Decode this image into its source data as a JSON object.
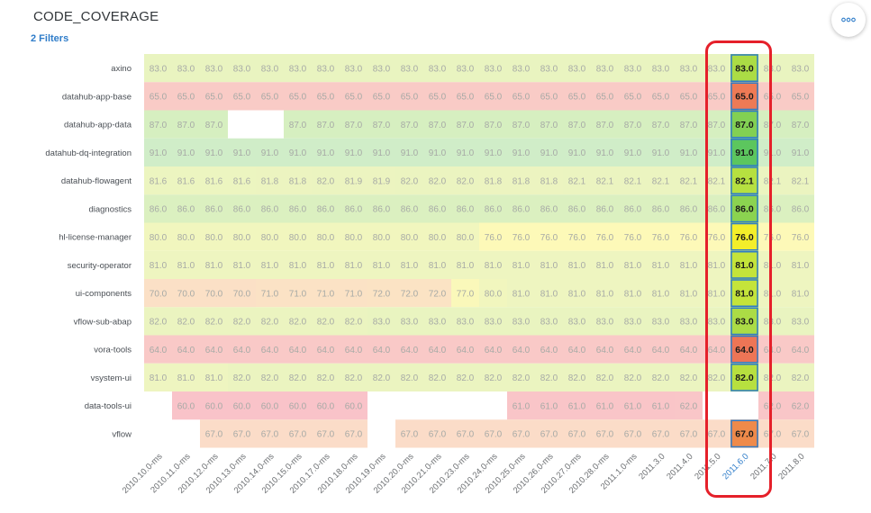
{
  "header": {
    "title": "CODE_COVERAGE",
    "filters_label": "2 Filters",
    "more_icon": "more-horizontal-icon"
  },
  "colors": {
    "accent": "#2e7cc9",
    "highlight_box": "#e5202a",
    "selected_border": "#2e7cc9"
  },
  "chart_data": {
    "type": "heatmap",
    "title": "",
    "xlabel": "",
    "ylabel": "",
    "selected_column": "2011.6.0",
    "x": [
      "2010.10.0-ms",
      "2010.11.0-ms",
      "2010.12.0-ms",
      "2010.13.0-ms",
      "2010.14.0-ms",
      "2010.15.0-ms",
      "2010.17.0-ms",
      "2010.18.0-ms",
      "2010.19.0-ms",
      "2010.20.0-ms",
      "2010.21.0-ms",
      "2010.23.0-ms",
      "2010.24.0-ms",
      "2010.25.0-ms",
      "2010.26.0-ms",
      "2010.27.0-ms",
      "2010.28.0-ms",
      "2011.1.0-ms",
      "2011.3.0",
      "2011.4.0",
      "2011.5.0",
      "2011.6.0",
      "2011.7.0",
      "2011.8.0"
    ],
    "y": [
      "axino",
      "datahub-app-base",
      "datahub-app-data",
      "datahub-dq-integration",
      "datahub-flowagent",
      "diagnostics",
      "hl-license-manager",
      "security-operator",
      "ui-components",
      "vflow-sub-abap",
      "vora-tools",
      "vsystem-ui",
      "data-tools-ui",
      "vflow"
    ],
    "values": [
      [
        83.0,
        83.0,
        83.0,
        83.0,
        83.0,
        83.0,
        83.0,
        83.0,
        83.0,
        83.0,
        83.0,
        83.0,
        83.0,
        83.0,
        83.0,
        83.0,
        83.0,
        83.0,
        83.0,
        83.0,
        83.0,
        83.0,
        83.0,
        83.0
      ],
      [
        65.0,
        65.0,
        65.0,
        65.0,
        65.0,
        65.0,
        65.0,
        65.0,
        65.0,
        65.0,
        65.0,
        65.0,
        65.0,
        65.0,
        65.0,
        65.0,
        65.0,
        65.0,
        65.0,
        65.0,
        65.0,
        65.0,
        65.0,
        65.0
      ],
      [
        87.0,
        87.0,
        87.0,
        null,
        null,
        87.0,
        87.0,
        87.0,
        87.0,
        87.0,
        87.0,
        87.0,
        87.0,
        87.0,
        87.0,
        87.0,
        87.0,
        87.0,
        87.0,
        87.0,
        87.0,
        87.0,
        87.0,
        87.0
      ],
      [
        91.0,
        91.0,
        91.0,
        91.0,
        91.0,
        91.0,
        91.0,
        91.0,
        91.0,
        91.0,
        91.0,
        91.0,
        91.0,
        91.0,
        91.0,
        91.0,
        91.0,
        91.0,
        91.0,
        91.0,
        91.0,
        91.0,
        91.0,
        91.0
      ],
      [
        81.6,
        81.6,
        81.6,
        81.6,
        81.8,
        81.8,
        82.0,
        81.9,
        81.9,
        82.0,
        82.0,
        82.0,
        81.8,
        81.8,
        81.8,
        82.1,
        82.1,
        82.1,
        82.1,
        82.1,
        82.1,
        82.1,
        82.1,
        82.1
      ],
      [
        86.0,
        86.0,
        86.0,
        86.0,
        86.0,
        86.0,
        86.0,
        86.0,
        86.0,
        86.0,
        86.0,
        86.0,
        86.0,
        86.0,
        86.0,
        86.0,
        86.0,
        86.0,
        86.0,
        86.0,
        86.0,
        86.0,
        86.0,
        86.0
      ],
      [
        80.0,
        80.0,
        80.0,
        80.0,
        80.0,
        80.0,
        80.0,
        80.0,
        80.0,
        80.0,
        80.0,
        80.0,
        76.0,
        76.0,
        76.0,
        76.0,
        76.0,
        76.0,
        76.0,
        76.0,
        76.0,
        76.0,
        76.0,
        76.0
      ],
      [
        81.0,
        81.0,
        81.0,
        81.0,
        81.0,
        81.0,
        81.0,
        81.0,
        81.0,
        81.0,
        81.0,
        81.0,
        81.0,
        81.0,
        81.0,
        81.0,
        81.0,
        81.0,
        81.0,
        81.0,
        81.0,
        81.0,
        81.0,
        81.0
      ],
      [
        70.0,
        70.0,
        70.0,
        70.0,
        71.0,
        71.0,
        71.0,
        71.0,
        72.0,
        72.0,
        72.0,
        77.0,
        80.0,
        81.0,
        81.0,
        81.0,
        81.0,
        81.0,
        81.0,
        81.0,
        81.0,
        81.0,
        81.0,
        81.0
      ],
      [
        82.0,
        82.0,
        82.0,
        82.0,
        82.0,
        82.0,
        82.0,
        82.0,
        83.0,
        83.0,
        83.0,
        83.0,
        83.0,
        83.0,
        83.0,
        83.0,
        83.0,
        83.0,
        83.0,
        83.0,
        83.0,
        83.0,
        83.0,
        83.0
      ],
      [
        64.0,
        64.0,
        64.0,
        64.0,
        64.0,
        64.0,
        64.0,
        64.0,
        64.0,
        64.0,
        64.0,
        64.0,
        64.0,
        64.0,
        64.0,
        64.0,
        64.0,
        64.0,
        64.0,
        64.0,
        64.0,
        64.0,
        64.0,
        64.0
      ],
      [
        81.0,
        81.0,
        81.0,
        82.0,
        82.0,
        82.0,
        82.0,
        82.0,
        82.0,
        82.0,
        82.0,
        82.0,
        82.0,
        82.0,
        82.0,
        82.0,
        82.0,
        82.0,
        82.0,
        82.0,
        82.0,
        82.0,
        82.0,
        82.0
      ],
      [
        null,
        60.0,
        60.0,
        60.0,
        60.0,
        60.0,
        60.0,
        60.0,
        null,
        null,
        null,
        null,
        null,
        61.0,
        61.0,
        61.0,
        61.0,
        61.0,
        61.0,
        62.0,
        null,
        null,
        62.0,
        62.0
      ],
      [
        null,
        null,
        67.0,
        67.0,
        67.0,
        67.0,
        67.0,
        67.0,
        null,
        67.0,
        67.0,
        67.0,
        67.0,
        67.0,
        67.0,
        67.0,
        67.0,
        67.0,
        67.0,
        67.0,
        67.0,
        67.0,
        67.0,
        67.0
      ]
    ],
    "grid": false,
    "legend": "none"
  }
}
